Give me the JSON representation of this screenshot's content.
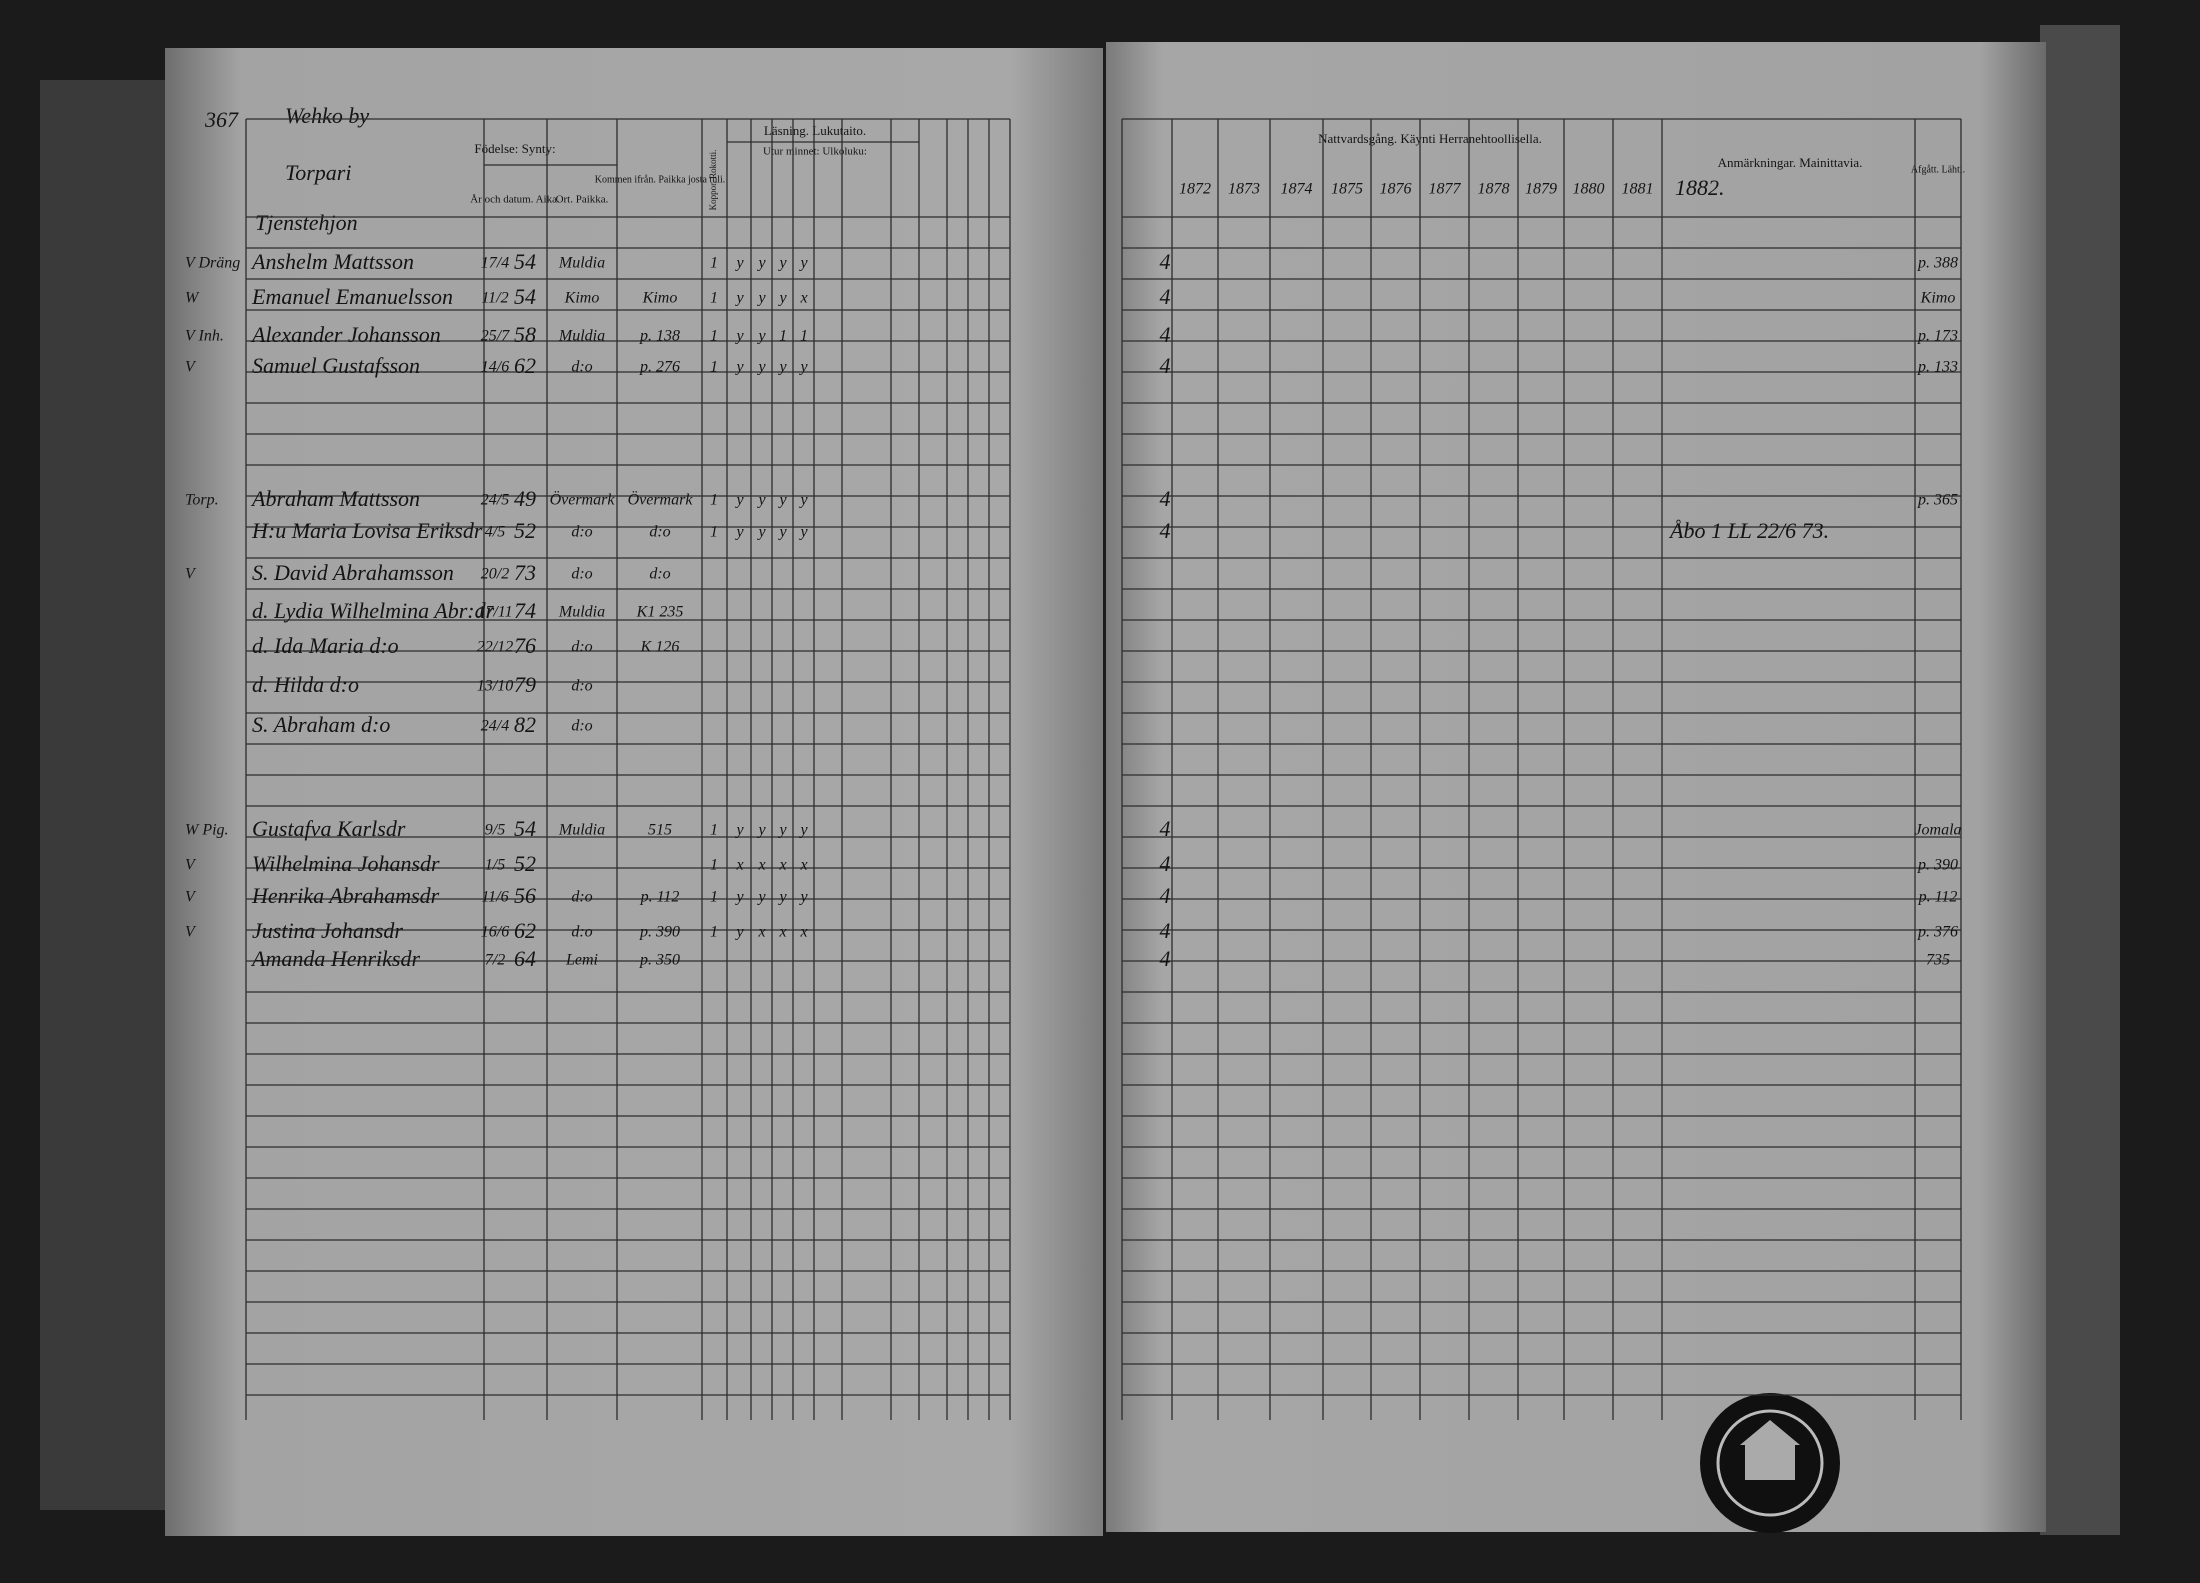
{
  "header": {
    "page_number": "367",
    "village": "Wehko by",
    "group_1": "Torpari",
    "group_2": "Tjenstehjon"
  },
  "left_columns": {
    "birth": "Födelse: Synty:",
    "date": "År och datum. Aika.",
    "place": "Ort. Paikka.",
    "from": "Kommen ifrån. Paikka josta tuli.",
    "vaccination": "Koppor. Rokotti.",
    "reading": "Läsning. Lukutaito.",
    "memory": "Utur minnet: Ulkoluku:"
  },
  "right_columns": {
    "communion": "Nattvardsgång. Käynti Herranehtoollisella.",
    "years": [
      "1872",
      "1873",
      "1874",
      "1875",
      "1876",
      "1877",
      "1878",
      "1879",
      "1880",
      "1881"
    ],
    "remarks_year": "1882.",
    "remarks": "Anmärkningar. Mainittavia.",
    "departed": "Afgått. Lähti."
  },
  "rows": [
    {
      "margin": "V Dräng",
      "name": "Anshelm Mattsson",
      "date": "17/4",
      "year": "54",
      "place": "Muldia",
      "reading": [
        "1",
        "y",
        "y",
        "y",
        "y"
      ],
      "communion": "4",
      "departed": "p. 388"
    },
    {
      "margin": "W",
      "name": "Emanuel Emanuelsson",
      "date": "11/2",
      "year": "54",
      "place": "Kimo",
      "from": "Kimo",
      "reading": [
        "1",
        "y",
        "y",
        "y",
        "x"
      ],
      "communion": "4",
      "departed": "Kimo"
    },
    {
      "margin": "V Inh.",
      "name": "Alexander Johansson",
      "date": "25/7",
      "year": "58",
      "place": "Muldia",
      "from": "p. 138",
      "reading": [
        "1",
        "y",
        "y",
        "1",
        "1"
      ],
      "communion": "4",
      "departed": "p. 173"
    },
    {
      "margin": "V",
      "name": "Samuel Gustafsson",
      "date": "14/6",
      "year": "62",
      "place": "d:o",
      "from": "p. 276",
      "reading": [
        "1",
        "y",
        "y",
        "y",
        "y"
      ],
      "communion": "4",
      "departed": "p. 133"
    },
    {
      "margin": "Torp.",
      "name": "Abraham Mattsson",
      "date": "24/5",
      "year": "49",
      "place": "Övermark",
      "from": "Övermark",
      "reading": [
        "1",
        "y",
        "y",
        "y",
        "y"
      ],
      "communion": "4",
      "departed": "p. 365"
    },
    {
      "name": "H:u Maria Lovisa Eriksdr",
      "date": "4/5",
      "year": "52",
      "place": "d:o",
      "from": "d:o",
      "reading": [
        "1",
        "y",
        "y",
        "y",
        "y"
      ],
      "communion": "4",
      "remarks": "Åbo 1 LL 22/6 73."
    },
    {
      "margin": "V",
      "name": "S. David Abrahamsson",
      "date": "20/2",
      "year": "73",
      "place": "d:o",
      "from": "d:o"
    },
    {
      "name": "d. Lydia Wilhelmina Abr:dr",
      "date": "17/11",
      "year": "74",
      "place": "Muldia",
      "from": "K1 235"
    },
    {
      "name": "d. Ida Maria d:o",
      "date": "22/12",
      "year": "76",
      "place": "d:o",
      "from": "K 126"
    },
    {
      "name": "d. Hilda d:o",
      "date": "13/10",
      "year": "79",
      "place": "d:o"
    },
    {
      "name": "S. Abraham d:o",
      "date": "24/4",
      "year": "82",
      "place": "d:o"
    },
    {
      "margin": "W Pig.",
      "name": "Gustafva Karlsdr",
      "date": "9/5",
      "year": "54",
      "place": "Muldia",
      "from": "515",
      "reading": [
        "1",
        "y",
        "y",
        "y",
        "y"
      ],
      "communion": "4",
      "departed": "Jomala"
    },
    {
      "margin": "V",
      "name": "Wilhelmina Johansdr",
      "date": "1/5",
      "year": "52",
      "reading": [
        "1",
        "x",
        "x",
        "x",
        "x"
      ],
      "communion": "4",
      "departed": "p. 390"
    },
    {
      "margin": "V",
      "name": "Henrika Abrahamsdr",
      "date": "11/6",
      "year": "56",
      "place": "d:o",
      "from": "p. 112",
      "reading": [
        "1",
        "y",
        "y",
        "y",
        "y"
      ],
      "communion": "4",
      "departed": "p. 112"
    },
    {
      "margin": "V",
      "name": "Justina Johansdr",
      "date": "16/6",
      "year": "62",
      "place": "d:o",
      "from": "p. 390",
      "reading": [
        "1",
        "y",
        "x",
        "x",
        "x"
      ],
      "communion": "4",
      "departed": "p. 376"
    },
    {
      "name": "Amanda Henriksdr",
      "date": "7/2",
      "year": "64",
      "place": "Lemi",
      "from": "p. 350",
      "communion": "4",
      "departed": "735"
    }
  ]
}
